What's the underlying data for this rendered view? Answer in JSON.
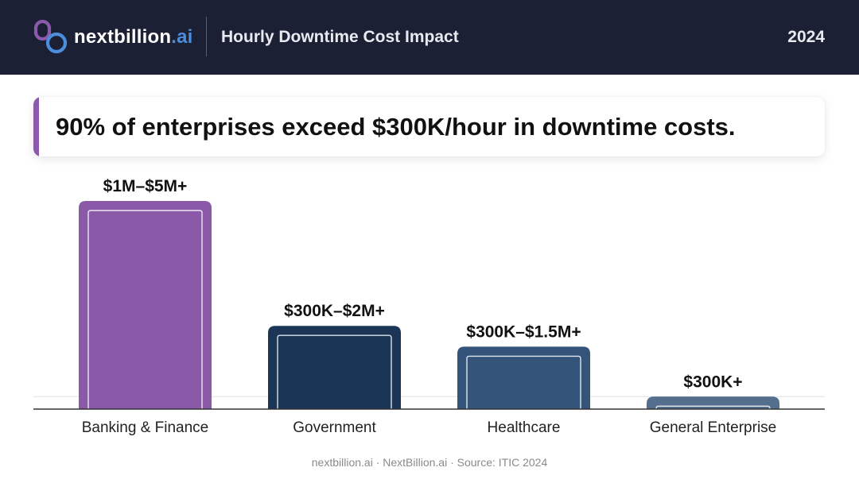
{
  "header": {
    "brand_name": "nextbillion",
    "brand_tld": ".ai",
    "title": "Hourly Downtime Cost Impact",
    "year": "2024"
  },
  "callout": {
    "text": "90% of enterprises exceed $300K/hour in downtime costs."
  },
  "chart_data": {
    "type": "bar",
    "categories": [
      "Banking & Finance",
      "Government",
      "Healthcare",
      "General Enterprise"
    ],
    "values": [
      5,
      2,
      1.5,
      0.3
    ],
    "value_unit": "USD millions per hour (upper estimate)",
    "data_labels": [
      "$1M–$5M+",
      "$300K–$2M+",
      "$300K–$1.5M+",
      "$300K+"
    ],
    "colors": [
      "#8a5aa8",
      "#1b3556",
      "#34547a",
      "#546f8e"
    ],
    "reference_line": 0.3,
    "ylim": [
      0,
      5
    ],
    "grid": false,
    "title": "",
    "xlabel": "",
    "ylabel": ""
  },
  "footer": {
    "text": "nextbillion.ai · NextBillion.ai · Source: ITIC 2024"
  },
  "colors": {
    "header_bg": "#1c2035",
    "accent_purple": "#8b5aad",
    "accent_blue": "#4b8fdc"
  }
}
